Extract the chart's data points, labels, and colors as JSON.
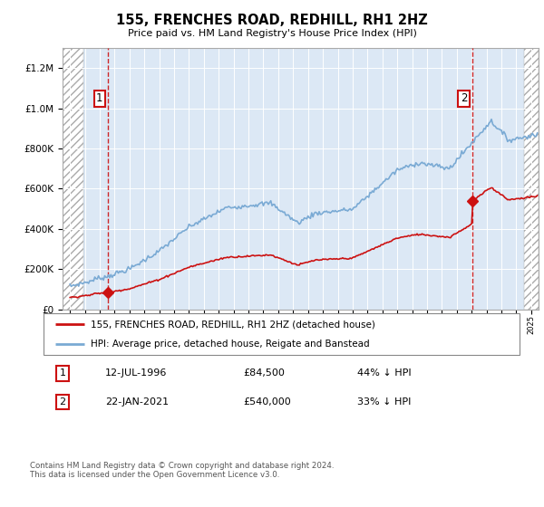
{
  "title": "155, FRENCHES ROAD, REDHILL, RH1 2HZ",
  "subtitle": "Price paid vs. HM Land Registry's House Price Index (HPI)",
  "legend_line1": "155, FRENCHES ROAD, REDHILL, RH1 2HZ (detached house)",
  "legend_line2": "HPI: Average price, detached house, Reigate and Banstead",
  "footnote": "Contains HM Land Registry data © Crown copyright and database right 2024.\nThis data is licensed under the Open Government Licence v3.0.",
  "purchase1_date": "12-JUL-1996",
  "purchase1_price": 84500,
  "purchase1_label": "44% ↓ HPI",
  "purchase2_date": "22-JAN-2021",
  "purchase2_price": 540000,
  "purchase2_label": "33% ↓ HPI",
  "hpi_color": "#7aaad4",
  "price_color": "#cc1111",
  "bg_color": "#dce8f5",
  "ylim": [
    0,
    1300000
  ],
  "yticks": [
    0,
    200000,
    400000,
    600000,
    800000,
    1000000,
    1200000
  ],
  "xlim_start": 1993.5,
  "xlim_end": 2025.5,
  "hatch_right_start": 2024.5
}
